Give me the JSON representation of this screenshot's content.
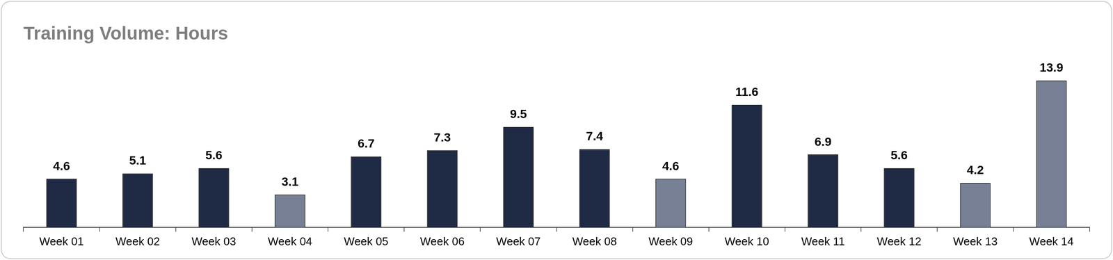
{
  "chart_data": {
    "type": "bar",
    "title": "Training Volume: Hours",
    "categories": [
      "Week 01",
      "Week 02",
      "Week 03",
      "Week 04",
      "Week 05",
      "Week 06",
      "Week 07",
      "Week 08",
      "Week 09",
      "Week 10",
      "Week 11",
      "Week 12",
      "Week 13",
      "Week 14"
    ],
    "values": [
      4.6,
      5.1,
      5.6,
      3.1,
      6.7,
      7.3,
      9.5,
      7.4,
      4.6,
      11.6,
      6.9,
      5.6,
      4.2,
      13.9
    ],
    "colors": [
      "#1f2a44",
      "#1f2a44",
      "#1f2a44",
      "#778094",
      "#1f2a44",
      "#1f2a44",
      "#1f2a44",
      "#1f2a44",
      "#778094",
      "#1f2a44",
      "#1f2a44",
      "#1f2a44",
      "#778094",
      "#778094"
    ],
    "ylim": [
      0,
      16
    ],
    "grid": false,
    "data_labels": true,
    "tick_labels": "x"
  }
}
